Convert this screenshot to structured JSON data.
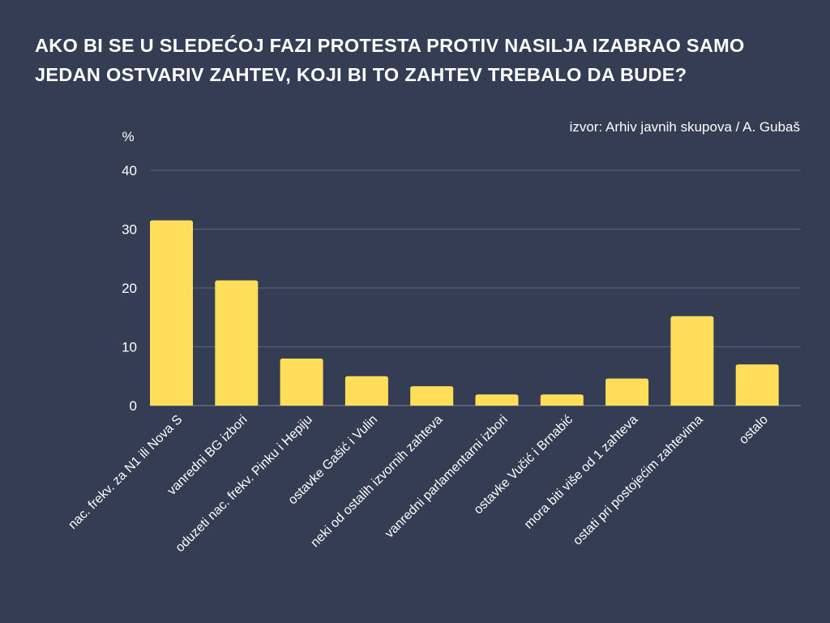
{
  "title": "AKO BI SE U SLEDEĆOJ FAZI PROTESTA PROTIV NASILJA IZABRAO SAMO JEDAN OSTVARIV ZAHTEV, KOJI BI TO ZAHTEV TREBALO DA BUDE?",
  "source": "izvor: Arhiv javnih skupova / A. Gubaš",
  "colors": {
    "background": "#343d54",
    "bar": "#ffdf5a",
    "text": "#ffffff",
    "grid": "#5d6578"
  },
  "chart_data": {
    "type": "bar",
    "title": "AKO BI SE U SLEDEĆOJ FAZI PROTESTA PROTIV NASILJA IZABRAO SAMO JEDAN OSTVARIV ZAHTEV, KOJI BI TO ZAHTEV TREBALO DA BUDE?",
    "ylabel": "%",
    "xlabel": "",
    "ylim": [
      0,
      40
    ],
    "yticks": [
      0,
      10,
      20,
      30,
      40
    ],
    "grid": true,
    "legend": "none",
    "categories": [
      "nac. frekv. za N1 ili Nova S",
      "vanredni BG izbori",
      "oduzeti nac. frekv. Pinku i Hepiju",
      "ostavke Gašić i Vulin",
      "neki od ostalih izvornih zahteva",
      "vanredni parlamentarni izbori",
      "ostavke Vučić i Brnabić",
      "mora biti više od 1 zahteva",
      "ostati pri postojećim zahtevima",
      "ostalo"
    ],
    "values": [
      31.5,
      21.3,
      8.0,
      5.0,
      3.3,
      1.9,
      1.9,
      4.6,
      15.2,
      7.0
    ]
  }
}
